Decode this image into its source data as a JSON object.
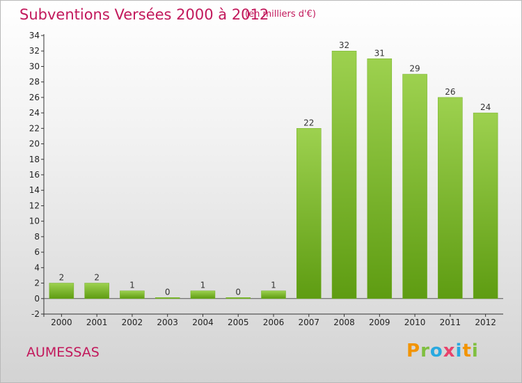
{
  "chart_data": {
    "type": "bar",
    "title": "Subventions Versées 2000 à 2012",
    "subtitle": "(en milliers d'€)",
    "categories": [
      "2000",
      "2001",
      "2002",
      "2003",
      "2004",
      "2005",
      "2006",
      "2007",
      "2008",
      "2009",
      "2010",
      "2011",
      "2012"
    ],
    "values": [
      2,
      2,
      1,
      0,
      1,
      0,
      1,
      22,
      32,
      31,
      29,
      26,
      24
    ],
    "ylim": [
      -2,
      34
    ],
    "yticks": [
      -2,
      0,
      2,
      4,
      6,
      8,
      10,
      12,
      14,
      16,
      18,
      20,
      22,
      24,
      26,
      28,
      30,
      32,
      34
    ],
    "xlabel": "",
    "ylabel": "",
    "grid": false,
    "colors": {
      "bar_top": "#9dd14f",
      "bar_bottom": "#5e9c12",
      "title": "#c2185b"
    }
  },
  "commune": "AUMESSAS",
  "logo": {
    "letters": [
      "P",
      "r",
      "o",
      "x",
      "i",
      "t",
      "i"
    ],
    "colors": [
      "#f29400",
      "#7fbf3f",
      "#29a9e0",
      "#e8426b",
      "#29a9e0",
      "#f29400",
      "#7fbf3f"
    ]
  }
}
